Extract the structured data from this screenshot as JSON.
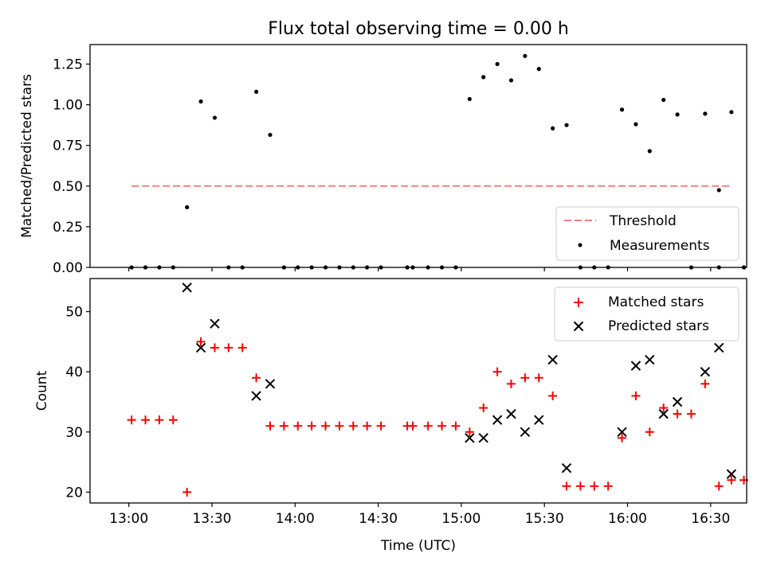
{
  "figure_title": "Flux total observing time = 0.00 h",
  "colors": {
    "threshold": "#f08080",
    "measurement": "#000000",
    "matched": "#ff0000",
    "predicted": "#000000",
    "axes": "#000000"
  },
  "chart_data": [
    {
      "type": "scatter",
      "panel": "top",
      "title": "Flux total observing time = 0.00 h",
      "xlabel": "",
      "ylabel": "Matched/Predicted stars",
      "xlim_minutes": [
        766,
        1003
      ],
      "ylim": [
        0,
        1.37
      ],
      "yticks": [
        0.0,
        0.25,
        0.5,
        0.75,
        1.0,
        1.25
      ],
      "ytick_labels": [
        "0.00",
        "0.25",
        "0.50",
        "0.75",
        "1.00",
        "1.25"
      ],
      "xticks_minutes": [
        780,
        810,
        840,
        870,
        900,
        930,
        960,
        990
      ],
      "legend_position": "lower-right",
      "series": [
        {
          "name": "Threshold",
          "kind": "dashed-line",
          "points": [
            [
              781,
              0.5
            ],
            [
              997.5,
              0.5
            ]
          ]
        },
        {
          "name": "Measurements",
          "kind": "dot",
          "points": [
            [
              781,
              0
            ],
            [
              786,
              0
            ],
            [
              791,
              0
            ],
            [
              796,
              0
            ],
            [
              801,
              0.37
            ],
            [
              806,
              1.02
            ],
            [
              811,
              0.92
            ],
            [
              816,
              0
            ],
            [
              821,
              0
            ],
            [
              826,
              1.08
            ],
            [
              831,
              0.815
            ],
            [
              836,
              0
            ],
            [
              841,
              0
            ],
            [
              846,
              0
            ],
            [
              851,
              0
            ],
            [
              856,
              0
            ],
            [
              861,
              0
            ],
            [
              866,
              0
            ],
            [
              871,
              0
            ],
            [
              880.5,
              0
            ],
            [
              882.5,
              0
            ],
            [
              888,
              0
            ],
            [
              893,
              0
            ],
            [
              898,
              0
            ],
            [
              903,
              1.035
            ],
            [
              908,
              1.17
            ],
            [
              913,
              1.25
            ],
            [
              918,
              1.15
            ],
            [
              923,
              1.3
            ],
            [
              928,
              1.22
            ],
            [
              933,
              0.855
            ],
            [
              938,
              0.875
            ],
            [
              943,
              0
            ],
            [
              948,
              0
            ],
            [
              953,
              0
            ],
            [
              958,
              0.97
            ],
            [
              963,
              0.88
            ],
            [
              968,
              0.715
            ],
            [
              973,
              1.03
            ],
            [
              978,
              0.94
            ],
            [
              983,
              0
            ],
            [
              988,
              0.945
            ],
            [
              993,
              0.475
            ],
            [
              993,
              0
            ],
            [
              997.5,
              0.955
            ],
            [
              1002,
              0
            ]
          ]
        }
      ]
    },
    {
      "type": "scatter",
      "panel": "bottom",
      "title": "",
      "xlabel": "Time (UTC)",
      "ylabel": "Count",
      "xlim_minutes": [
        766,
        1003
      ],
      "ylim": [
        18.2,
        55.5
      ],
      "yticks": [
        20,
        30,
        40,
        50
      ],
      "ytick_labels": [
        "20",
        "30",
        "40",
        "50"
      ],
      "xticks_minutes": [
        780,
        810,
        840,
        870,
        900,
        930,
        960,
        990
      ],
      "xtick_labels": [
        "13:00",
        "13:30",
        "14:00",
        "14:30",
        "15:00",
        "15:30",
        "16:00",
        "16:30"
      ],
      "legend_position": "upper-right",
      "series": [
        {
          "name": "Matched stars",
          "kind": "plus",
          "points": [
            [
              781,
              32
            ],
            [
              786,
              32
            ],
            [
              791,
              32
            ],
            [
              796,
              32
            ],
            [
              801,
              20
            ],
            [
              806,
              45
            ],
            [
              811,
              44
            ],
            [
              816,
              44
            ],
            [
              821,
              44
            ],
            [
              826,
              39
            ],
            [
              831,
              31
            ],
            [
              836,
              31
            ],
            [
              841,
              31
            ],
            [
              846,
              31
            ],
            [
              851,
              31
            ],
            [
              856,
              31
            ],
            [
              861,
              31
            ],
            [
              866,
              31
            ],
            [
              871,
              31
            ],
            [
              880.5,
              31
            ],
            [
              882.5,
              31
            ],
            [
              888,
              31
            ],
            [
              893,
              31
            ],
            [
              898,
              31
            ],
            [
              903,
              30
            ],
            [
              908,
              34
            ],
            [
              913,
              40
            ],
            [
              918,
              38
            ],
            [
              923,
              39
            ],
            [
              928,
              39
            ],
            [
              933,
              36
            ],
            [
              938,
              21
            ],
            [
              943,
              21
            ],
            [
              948,
              21
            ],
            [
              953,
              21
            ],
            [
              958,
              29
            ],
            [
              963,
              36
            ],
            [
              968,
              30
            ],
            [
              973,
              34
            ],
            [
              978,
              33
            ],
            [
              983,
              33
            ],
            [
              988,
              38
            ],
            [
              993,
              21
            ],
            [
              997.5,
              22
            ],
            [
              1002,
              22
            ]
          ]
        },
        {
          "name": "Predicted stars",
          "kind": "x",
          "points": [
            [
              801,
              54
            ],
            [
              806,
              44
            ],
            [
              811,
              48
            ],
            [
              826,
              36
            ],
            [
              831,
              38
            ],
            [
              903,
              29
            ],
            [
              908,
              29
            ],
            [
              913,
              32
            ],
            [
              918,
              33
            ],
            [
              923,
              30
            ],
            [
              928,
              32
            ],
            [
              933,
              42
            ],
            [
              938,
              24
            ],
            [
              958,
              30
            ],
            [
              963,
              41
            ],
            [
              968,
              42
            ],
            [
              973,
              33
            ],
            [
              978,
              35
            ],
            [
              988,
              40
            ],
            [
              993,
              44
            ],
            [
              997.5,
              23
            ]
          ]
        }
      ]
    }
  ]
}
